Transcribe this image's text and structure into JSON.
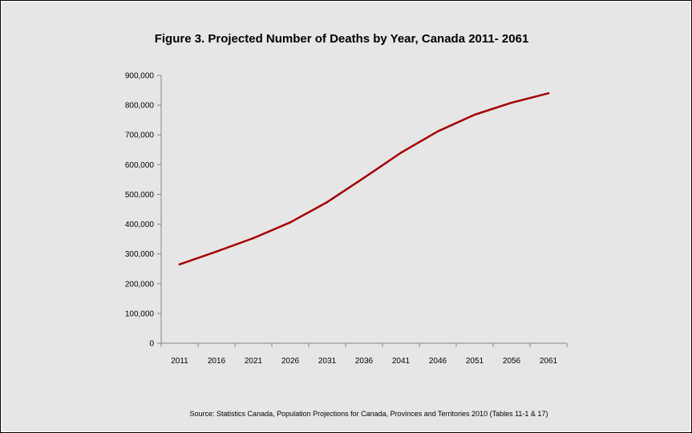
{
  "chart_data": {
    "type": "line",
    "title": "Figure 3. Projected Number of Deaths by Year, Canada 2011- 2061",
    "xlabel": "",
    "ylabel": "",
    "categories": [
      "2011",
      "2016",
      "2021",
      "2026",
      "2031",
      "2036",
      "2041",
      "2046",
      "2051",
      "2056",
      "2061"
    ],
    "series": [
      {
        "values": [
          265000,
          308000,
          353000,
          406000,
          474000,
          556000,
          640000,
          712000,
          768000,
          808000,
          840000
        ]
      }
    ],
    "ylim": [
      0,
      900000
    ],
    "yticks": [
      "0",
      "100,000",
      "200,000",
      "300,000",
      "400,000",
      "500,000",
      "600,000",
      "700,000",
      "800,000",
      "900,000"
    ],
    "grid": false,
    "legend": "none",
    "source": "Source: Statistics Canada, Population Projections for Canada, Provinces and Territories 2010 (Tables 11-1 & 17)",
    "colors": {
      "background": "#e6e6e6",
      "line": "#a50000",
      "axis": "#868686"
    }
  }
}
